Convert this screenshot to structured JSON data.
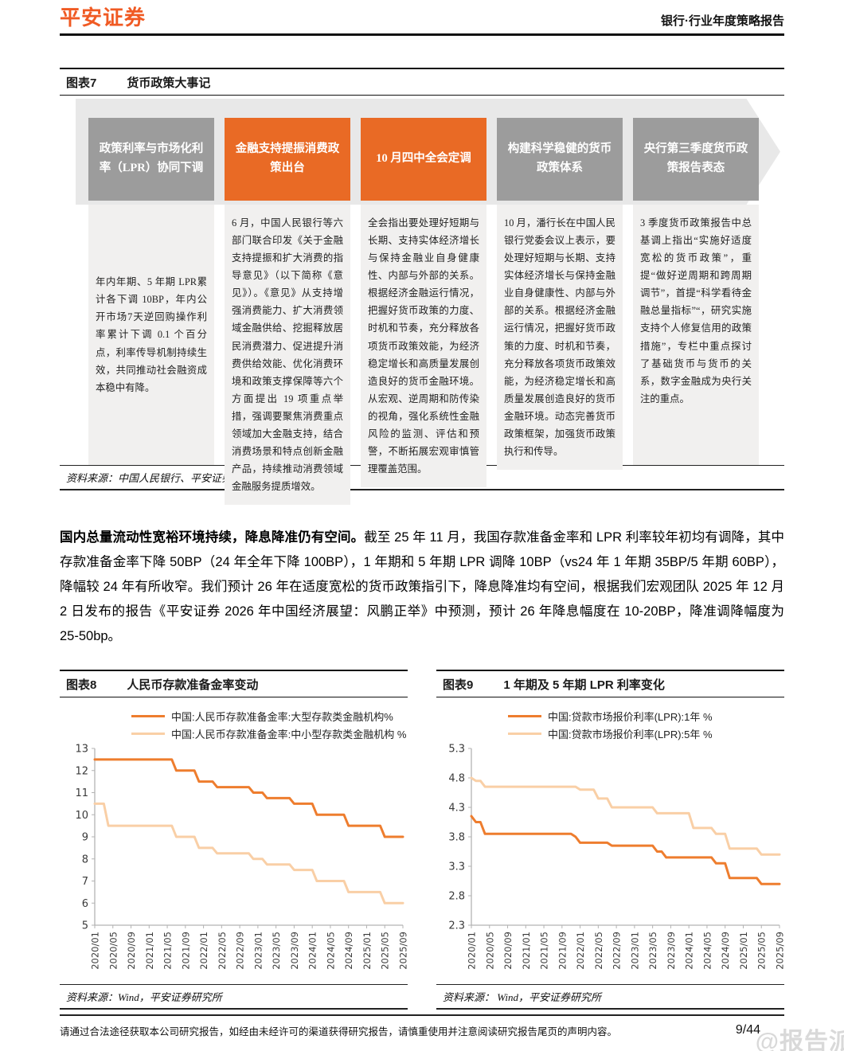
{
  "header": {
    "logo": "平安证券",
    "report_type": "银行·行业年度策略报告"
  },
  "figure7": {
    "label": "图表7",
    "title": "货币政策大事记",
    "source": "资料来源：中国人民银行、平安证券研究所",
    "columns": [
      {
        "box": "政策利率与市场化利率（LPR）协同下调",
        "box_color": "gray",
        "text": "年内年期、5 年期 LPR累计各下调 10BP，年内公开市场7天逆回购操作利率累计下调 0.1 个百分点，利率传导机制持续生效，共同推动社会融资成本稳中有降。"
      },
      {
        "box": "金融支持提振消费政策出台",
        "box_color": "orange",
        "text": "6 月，中国人民银行等六部门联合印发《关于金融支持提振和扩大消费的指导意见》（以下简称《意见》）。《意见》从支持增强消费能力、扩大消费领域金融供给、挖掘释放居民消费潜力、促进提升消费供给效能、优化消费环境和政策支撑保障等六个方面提出 19 项重点举措，强调要聚焦消费重点领域加大金融支持，结合消费场景和特点创新金融产品，持续推动消费领域金融服务提质增效。"
      },
      {
        "box": "10 月四中全会定调",
        "box_color": "orange",
        "text": "全会指出要处理好短期与长期、支持实体经济增长与保持金融业自身健康性、内部与外部的关系。根据经济金融运行情况，把握好货币政策的力度、时机和节奏，充分释放各项货币政策效能，为经济稳定增长和高质量发展创造良好的货币金融环境。从宏观、逆周期和防传染的视角，强化系统性金融风险的监测、评估和预警，不断拓展宏观审慎管理覆盖范围。"
      },
      {
        "box": "构建科学稳健的货币政策体系",
        "box_color": "gray",
        "text": "10 月，潘行长在中国人民银行党委会议上表示，要处理好短期与长期、支持实体经济增长与保持金融业自身健康性、内部与外部的关系。根据经济金融运行情况，把握好货币政策的力度、时机和节奏，充分释放各项货币政策效能，为经济稳定增长和高质量发展创造良好的货币金融环境。动态完善货币政策框架，加强货币政策执行和传导。"
      },
      {
        "box": "央行第三季度货币政策报告表态",
        "box_color": "gray",
        "text": "3 季度货币政策报告中总基调上指出“实施好适度宽松的货币政策”，重提“做好逆周期和跨周期调节”，首提“科学看待金融总量指标”“，研究实施支持个人修复信用的政策措施”，专栏中重点探讨了基础货币与货币的关系，数字金融成为央行关注的重点。"
      }
    ]
  },
  "paragraph": {
    "lead": "国内总量流动性宽裕环境持续，降息降准仍有空间。",
    "rest": "截至 25 年 11 月，我国存款准备金率和 LPR 利率较年初均有调降，其中存款准备金率下降 50BP（24 年全年下降 100BP），1 年期和 5 年期 LPR 调降 10BP（vs24 年 1 年期 35BP/5 年期 60BP），降幅较 24 年有所收窄。我们预计 26 年在适度宽松的货币政策指引下，降息降准均有空间，根据我们宏观团队 2025 年 12 月 2 日发布的报告《平安证券 2026 年中国经济展望：风鹏正举》中预测，预计 26 年降息幅度在 10-20BP，降准调降幅度为 25-50bp。"
  },
  "figure8": {
    "label": "图表8",
    "title": "人民币存款准备金率变动",
    "source": "资料来源：Wind，平安证券研究所"
  },
  "figure9": {
    "label": "图表9",
    "title": "1 年期及 5 年期 LPR 利率变化",
    "source": "资料来源： Wind，平安证券研究所"
  },
  "chart_data": [
    {
      "id": "fig8",
      "type": "line",
      "title": "人民币存款准备金率变动",
      "x_start": "2020/01",
      "x_end": "2025/09",
      "x_tick_every": 4,
      "x_ticks": [
        "2020/01",
        "2020/05",
        "2020/09",
        "2021/01",
        "2021/05",
        "2021/09",
        "2022/01",
        "2022/05",
        "2022/09",
        "2023/01",
        "2023/05",
        "2023/09",
        "2024/01",
        "2024/05",
        "2024/09",
        "2025/01",
        "2025/05",
        "2025/09"
      ],
      "ylim": [
        5,
        13
      ],
      "y_ticks": [
        "13",
        "12",
        "11",
        "10",
        "9",
        "8",
        "7",
        "6",
        "5"
      ],
      "grid": false,
      "legend_position": "top",
      "series": [
        {
          "name": "中国:人民币存款准备金率:大型存款类金融机构%",
          "color": "#ee7d2e",
          "changes": [
            [
              "2020/01",
              12.5
            ],
            [
              "2021/07",
              12.0
            ],
            [
              "2021/12",
              11.5
            ],
            [
              "2022/04",
              11.25
            ],
            [
              "2022/12",
              11.0
            ],
            [
              "2023/03",
              10.75
            ],
            [
              "2023/09",
              10.5
            ],
            [
              "2024/02",
              10.0
            ],
            [
              "2024/09",
              9.5
            ],
            [
              "2025/05",
              9.0
            ]
          ]
        },
        {
          "name": "中国:人民币存款准备金率:中小型存款类金融机构 %",
          "color": "#f9cfa6",
          "changes": [
            [
              "2020/01",
              10.5
            ],
            [
              "2020/04",
              9.5
            ],
            [
              "2021/07",
              9.0
            ],
            [
              "2021/12",
              8.5
            ],
            [
              "2022/04",
              8.25
            ],
            [
              "2022/12",
              8.0
            ],
            [
              "2023/03",
              7.75
            ],
            [
              "2023/09",
              7.5
            ],
            [
              "2024/02",
              7.0
            ],
            [
              "2024/09",
              6.5
            ],
            [
              "2025/05",
              6.0
            ]
          ]
        }
      ]
    },
    {
      "id": "fig9",
      "type": "line",
      "title": "1 年期及 5 年期 LPR 利率变化",
      "x_start": "2020/01",
      "x_end": "2025/09",
      "x_tick_every": 4,
      "x_ticks": [
        "2020/01",
        "2020/05",
        "2020/09",
        "2021/01",
        "2021/05",
        "2021/09",
        "2022/01",
        "2022/05",
        "2022/09",
        "2023/01",
        "2023/05",
        "2023/09",
        "2024/01",
        "2024/05",
        "2024/09",
        "2025/01",
        "2025/05",
        "2025/09"
      ],
      "ylim": [
        2.3,
        5.3
      ],
      "y_ticks": [
        "5.3",
        "4.8",
        "4.3",
        "3.8",
        "3.3",
        "2.8",
        "2.3"
      ],
      "grid": false,
      "legend_position": "top",
      "series": [
        {
          "name": "中国:贷款市场报价利率(LPR):1年 %",
          "color": "#ee7d2e",
          "changes": [
            [
              "2020/01",
              4.15
            ],
            [
              "2020/02",
              4.05
            ],
            [
              "2020/04",
              3.85
            ],
            [
              "2021/12",
              3.8
            ],
            [
              "2022/01",
              3.7
            ],
            [
              "2022/08",
              3.65
            ],
            [
              "2023/06",
              3.55
            ],
            [
              "2023/08",
              3.45
            ],
            [
              "2024/07",
              3.35
            ],
            [
              "2024/10",
              3.1
            ],
            [
              "2025/05",
              3.0
            ]
          ]
        },
        {
          "name": "中国:贷款市场报价利率(LPR):5年 %",
          "color": "#f9cfa6",
          "changes": [
            [
              "2020/01",
              4.8
            ],
            [
              "2020/02",
              4.75
            ],
            [
              "2020/04",
              4.65
            ],
            [
              "2022/01",
              4.6
            ],
            [
              "2022/05",
              4.45
            ],
            [
              "2022/08",
              4.3
            ],
            [
              "2023/06",
              4.2
            ],
            [
              "2024/02",
              3.95
            ],
            [
              "2024/07",
              3.85
            ],
            [
              "2024/10",
              3.6
            ],
            [
              "2025/05",
              3.5
            ]
          ]
        }
      ]
    }
  ],
  "footer": {
    "disclaimer": "请通过合法途径获取本公司研究报告，如经由未经许可的渠道获得研究报告，请慎重使用并注意阅读研究报告尾页的声明内容。",
    "page": "9/44",
    "watermark": "@报告派"
  }
}
